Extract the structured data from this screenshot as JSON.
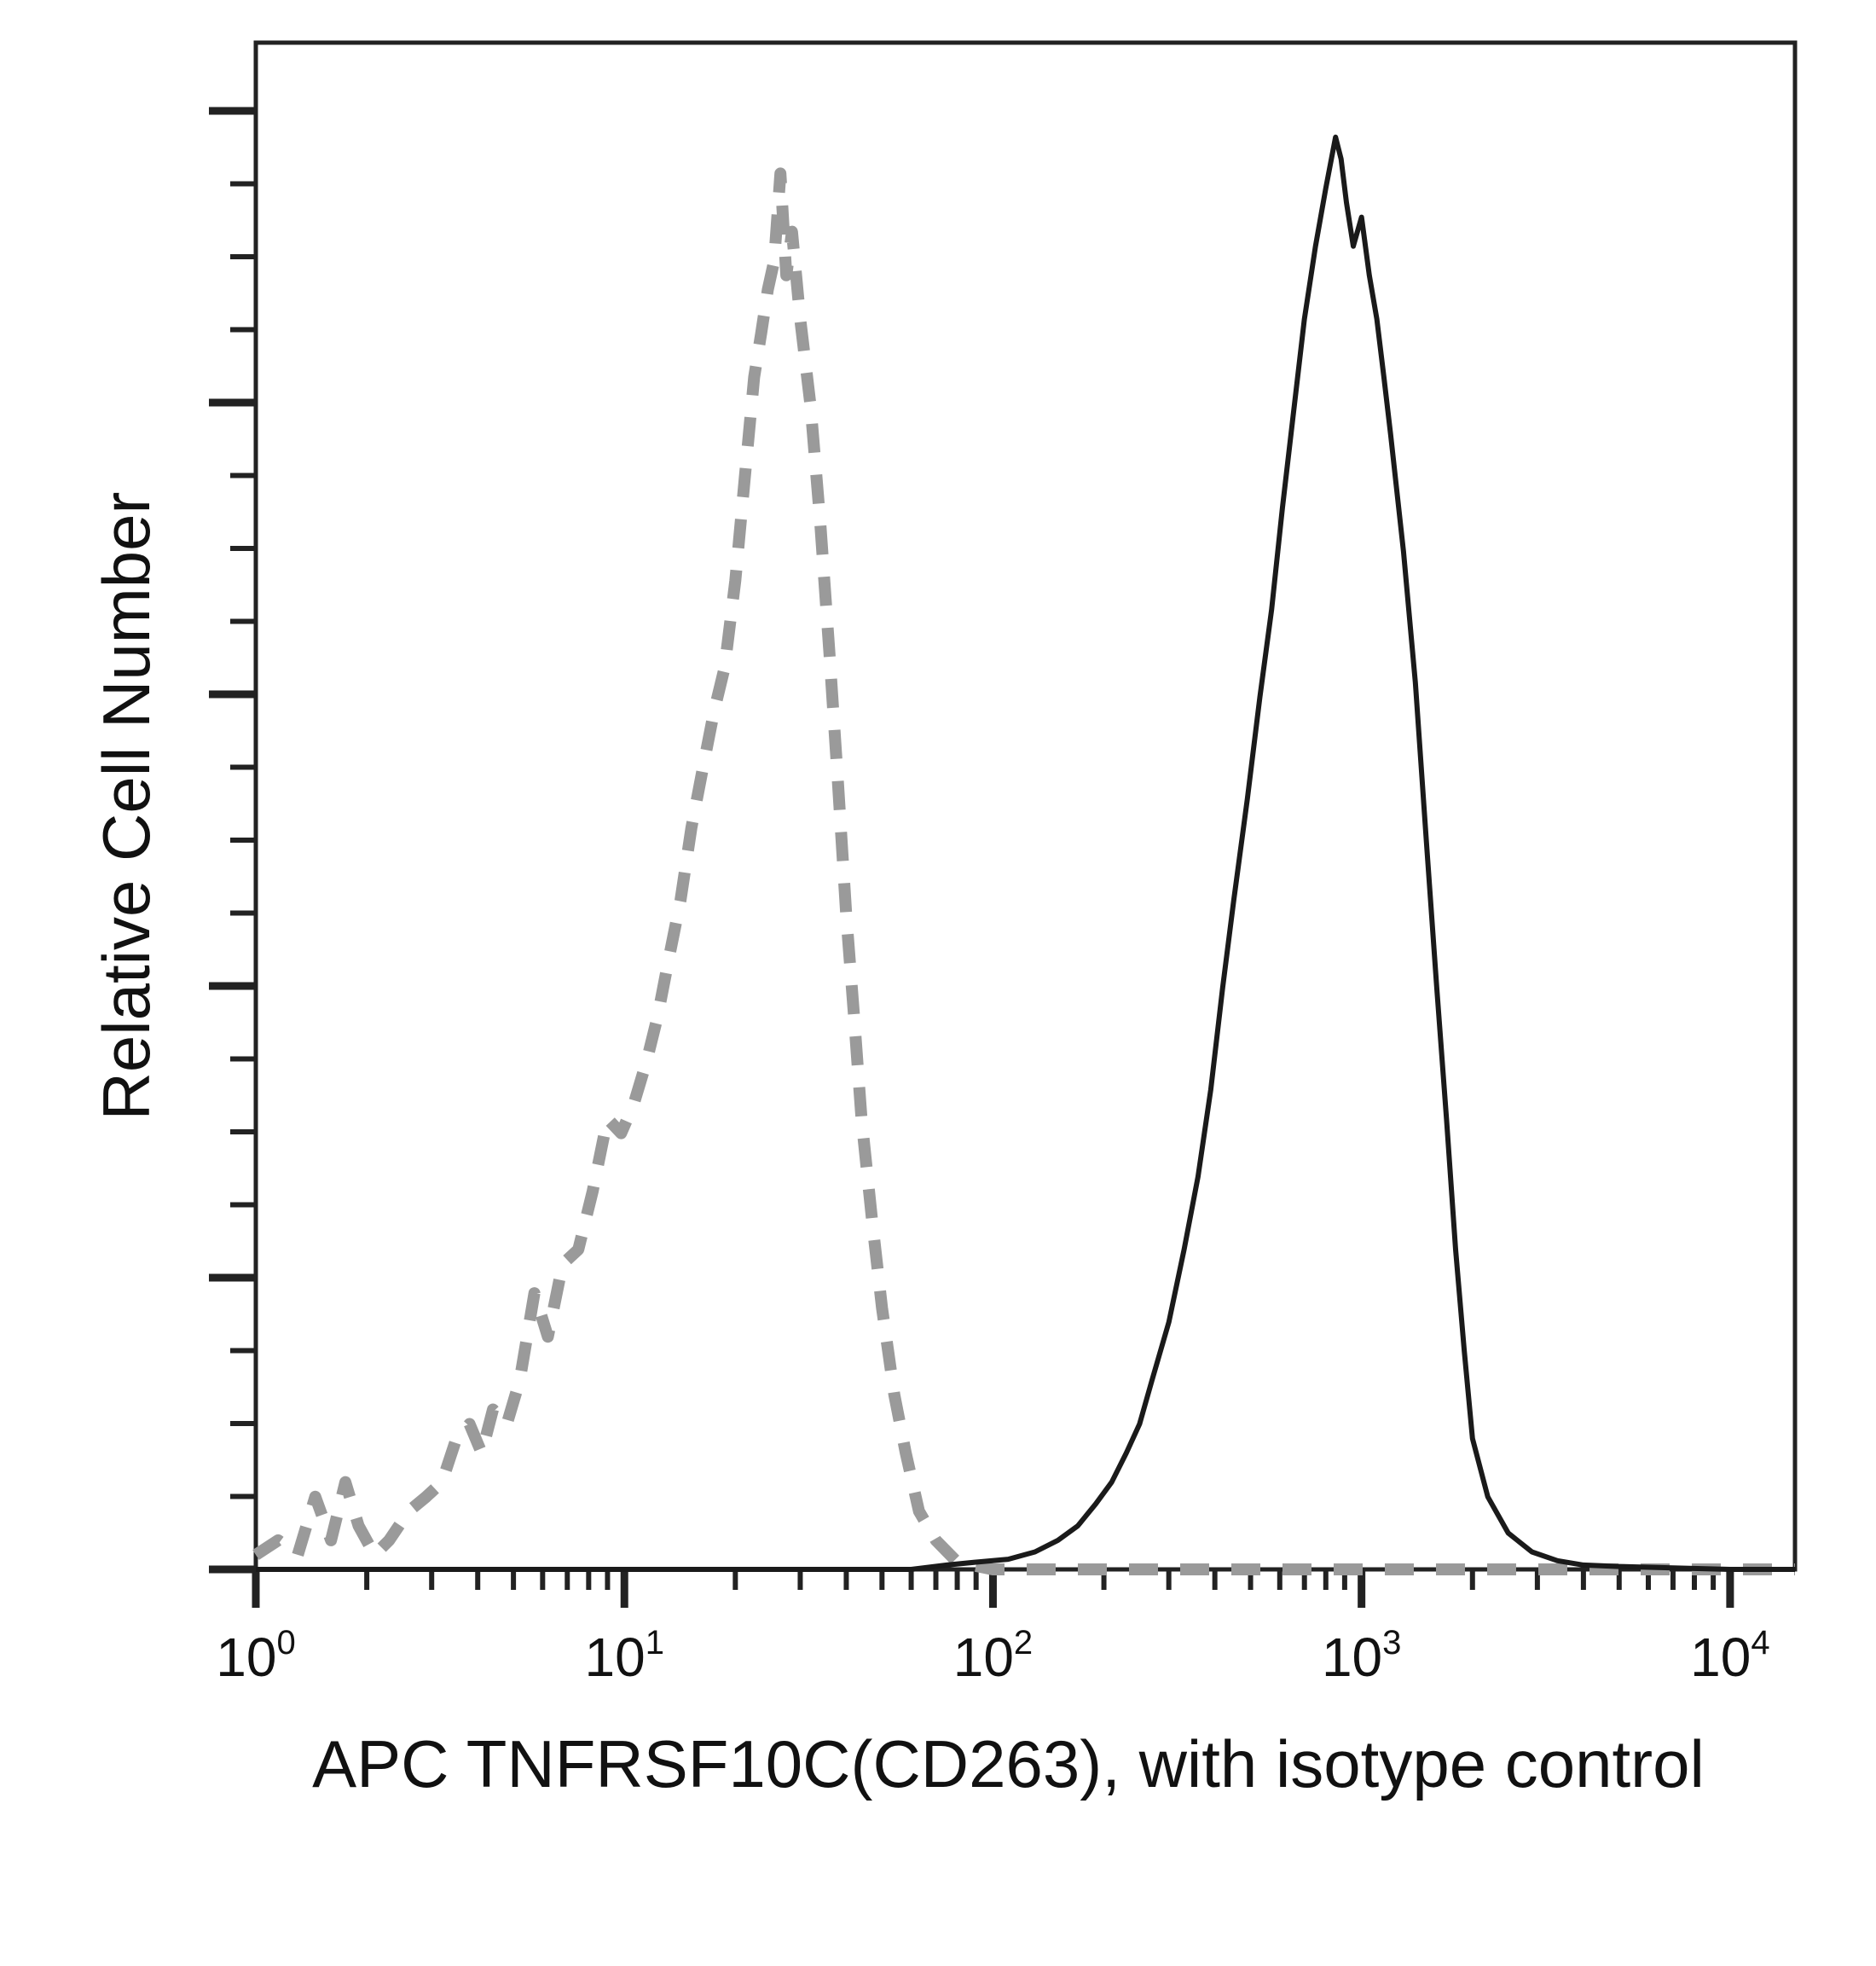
{
  "chart_data": {
    "type": "line",
    "title": "",
    "xlabel": "APC TNFRSF10C(CD263), with isotype control",
    "ylabel": "Relative Cell Number",
    "x_scale": "log",
    "xlim": [
      1,
      15000
    ],
    "ylim": [
      0,
      1.05
    ],
    "grid": false,
    "legend": "none",
    "x_ticks": [
      {
        "base": "10",
        "exp": "0",
        "value": 1
      },
      {
        "base": "10",
        "exp": "1",
        "value": 10
      },
      {
        "base": "10",
        "exp": "2",
        "value": 100
      },
      {
        "base": "10",
        "exp": "3",
        "value": 1000
      },
      {
        "base": "10",
        "exp": "4",
        "value": 10000
      }
    ],
    "series": [
      {
        "style": "dashed",
        "color": "#9a9a9a",
        "points": [
          [
            1.0,
            0.01
          ],
          [
            1.15,
            0.02
          ],
          [
            1.3,
            0.01
          ],
          [
            1.45,
            0.05
          ],
          [
            1.6,
            0.02
          ],
          [
            1.75,
            0.06
          ],
          [
            1.9,
            0.03
          ],
          [
            2.1,
            0.01
          ],
          [
            2.3,
            0.02
          ],
          [
            2.6,
            0.04
          ],
          [
            2.9,
            0.05
          ],
          [
            3.2,
            0.06
          ],
          [
            3.5,
            0.09
          ],
          [
            3.8,
            0.1
          ],
          [
            4.1,
            0.08
          ],
          [
            4.4,
            0.11
          ],
          [
            4.8,
            0.1
          ],
          [
            5.2,
            0.13
          ],
          [
            5.7,
            0.19
          ],
          [
            6.2,
            0.16
          ],
          [
            6.8,
            0.21
          ],
          [
            7.5,
            0.22
          ],
          [
            8.2,
            0.26
          ],
          [
            9.0,
            0.31
          ],
          [
            9.8,
            0.3
          ],
          [
            10.6,
            0.32
          ],
          [
            11.5,
            0.35
          ],
          [
            12.3,
            0.38
          ],
          [
            13.2,
            0.42
          ],
          [
            14.2,
            0.46
          ],
          [
            15.2,
            0.51
          ],
          [
            16.3,
            0.55
          ],
          [
            17.5,
            0.59
          ],
          [
            18.7,
            0.62
          ],
          [
            20.0,
            0.68
          ],
          [
            21.2,
            0.75
          ],
          [
            22.5,
            0.82
          ],
          [
            23.5,
            0.85
          ],
          [
            24.5,
            0.88
          ],
          [
            25.5,
            0.9
          ],
          [
            26.5,
            0.96
          ],
          [
            27.5,
            0.89
          ],
          [
            28.5,
            0.92
          ],
          [
            30.0,
            0.86
          ],
          [
            32.0,
            0.8
          ],
          [
            34.0,
            0.72
          ],
          [
            36.0,
            0.63
          ],
          [
            38.0,
            0.54
          ],
          [
            40.0,
            0.45
          ],
          [
            42.0,
            0.38
          ],
          [
            44.0,
            0.31
          ],
          [
            47.0,
            0.24
          ],
          [
            50.0,
            0.18
          ],
          [
            54.0,
            0.12
          ],
          [
            58.0,
            0.08
          ],
          [
            63.0,
            0.04
          ],
          [
            70.0,
            0.02
          ],
          [
            80.0,
            0.005
          ],
          [
            100.0,
            0.0
          ],
          [
            300.0,
            0.0
          ],
          [
            1000.0,
            0.0
          ],
          [
            3000.0,
            0.0
          ],
          [
            10000.0,
            0.0
          ],
          [
            15000.0,
            0.0
          ]
        ]
      },
      {
        "style": "solid",
        "color": "#1a1a1a",
        "points": [
          [
            1.0,
            0.0
          ],
          [
            60.0,
            0.0
          ],
          [
            75.0,
            0.003
          ],
          [
            90.0,
            0.005
          ],
          [
            110.0,
            0.007
          ],
          [
            130.0,
            0.012
          ],
          [
            150.0,
            0.02
          ],
          [
            170.0,
            0.03
          ],
          [
            190.0,
            0.045
          ],
          [
            210.0,
            0.06
          ],
          [
            230.0,
            0.08
          ],
          [
            250.0,
            0.1
          ],
          [
            270.0,
            0.13
          ],
          [
            300.0,
            0.17
          ],
          [
            330.0,
            0.22
          ],
          [
            360.0,
            0.27
          ],
          [
            390.0,
            0.33
          ],
          [
            420.0,
            0.4
          ],
          [
            450.0,
            0.46
          ],
          [
            490.0,
            0.53
          ],
          [
            530.0,
            0.6
          ],
          [
            570.0,
            0.66
          ],
          [
            610.0,
            0.73
          ],
          [
            650.0,
            0.79
          ],
          [
            700.0,
            0.86
          ],
          [
            750.0,
            0.91
          ],
          [
            800.0,
            0.95
          ],
          [
            850.0,
            0.985
          ],
          [
            880.0,
            0.97
          ],
          [
            910.0,
            0.94
          ],
          [
            950.0,
            0.91
          ],
          [
            1000.0,
            0.93
          ],
          [
            1050.0,
            0.89
          ],
          [
            1100.0,
            0.86
          ],
          [
            1150.0,
            0.82
          ],
          [
            1200.0,
            0.78
          ],
          [
            1300.0,
            0.7
          ],
          [
            1400.0,
            0.61
          ],
          [
            1500.0,
            0.5
          ],
          [
            1600.0,
            0.4
          ],
          [
            1700.0,
            0.31
          ],
          [
            1800.0,
            0.22
          ],
          [
            1900.0,
            0.15
          ],
          [
            2000.0,
            0.09
          ],
          [
            2200.0,
            0.05
          ],
          [
            2500.0,
            0.025
          ],
          [
            2900.0,
            0.012
          ],
          [
            3400.0,
            0.006
          ],
          [
            4000.0,
            0.003
          ],
          [
            5000.0,
            0.002
          ],
          [
            7000.0,
            0.001
          ],
          [
            10000.0,
            0.0
          ],
          [
            15000.0,
            0.0
          ]
        ]
      }
    ]
  }
}
